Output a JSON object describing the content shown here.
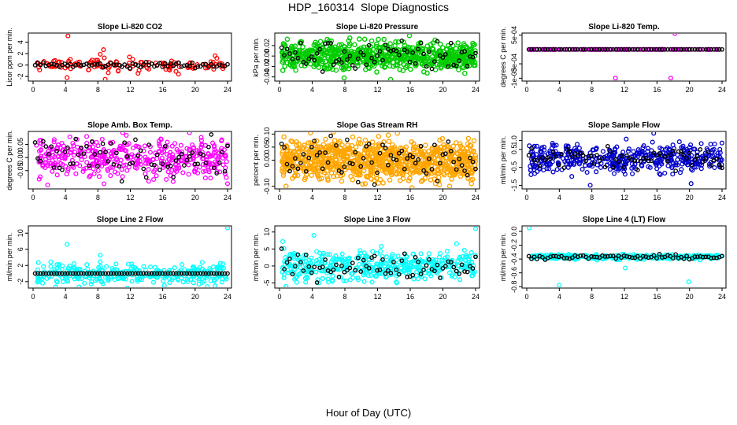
{
  "page": {
    "title": "HDP_160314  Slope Diagnostics",
    "xlabel": "Hour of Day (UTC)"
  },
  "chart_data": [
    {
      "type": "scatter",
      "title": "Slope Li-820 CO2",
      "ylabel": "Licor ppm per min.",
      "color": "#ff0000",
      "xlim": [
        0,
        24
      ],
      "xticks": [
        "0",
        "4",
        "8",
        "12",
        "16",
        "20",
        "24"
      ],
      "ylim": [
        -2.8,
        5.6
      ],
      "yticks": [
        "-2",
        "0",
        "2",
        "4"
      ],
      "style": "narrow",
      "spread": 0.35,
      "count": 130,
      "black_spread": 0.25,
      "outliers": [
        [
          4.3,
          5.1
        ],
        [
          8.7,
          2.7
        ],
        [
          8.3,
          1.9
        ],
        [
          4.2,
          -2.2
        ],
        [
          8.9,
          -2.5
        ],
        [
          4.6,
          1.0
        ],
        [
          12.3,
          1.0
        ]
      ]
    },
    {
      "type": "scatter",
      "title": "Slope Li-820 Pressure",
      "ylabel": "kPa per min.",
      "color": "#00cc00",
      "xlim": [
        0,
        24
      ],
      "xticks": [
        "0",
        "4",
        "8",
        "12",
        "16",
        "20",
        "24"
      ],
      "ylim": [
        -0.048,
        0.044
      ],
      "yticks": [
        "-0.04",
        "-0.02",
        "0.00",
        "0.02"
      ],
      "style": "dense",
      "spread": 0.013,
      "count": 700,
      "black_spread": 0.015,
      "outliers": [
        [
          15.9,
          0.039
        ],
        [
          12.1,
          0.032
        ],
        [
          13.6,
          -0.045
        ],
        [
          7.9,
          -0.042
        ]
      ]
    },
    {
      "type": "scatter",
      "title": "Slope Li-820 Temp.",
      "ylabel": "degrees C per min.",
      "color": "#ff00ff",
      "xlim": [
        0,
        24
      ],
      "xticks": [
        "0",
        "4",
        "8",
        "12",
        "16",
        "20",
        "24"
      ],
      "ylim": [
        -0.0011,
        0.00057
      ],
      "yticks": [
        "-1e-03",
        "-5e-04",
        "5e-04"
      ],
      "style": "flat",
      "spread": 0,
      "count": 110,
      "black_spread": 0,
      "outliers": [
        [
          18.2,
          0.00055
        ],
        [
          10.9,
          -0.001
        ],
        [
          17.7,
          -0.001
        ],
        [
          0.5,
          0
        ]
      ]
    },
    {
      "type": "scatter",
      "title": "Slope Amb. Box Temp.",
      "ylabel": "degrees C per min.",
      "color": "#ff00ff",
      "xlim": [
        0,
        24
      ],
      "xticks": [
        "0",
        "4",
        "8",
        "12",
        "16",
        "20",
        "24"
      ],
      "ylim": [
        -0.12,
        0.1
      ],
      "yticks": [
        "-0.05",
        "0.00",
        "0.05"
      ],
      "style": "medium",
      "spread": 0.035,
      "count": 420,
      "black_spread": 0.035,
      "outliers": [
        [
          19.3,
          0.095
        ],
        [
          24,
          -0.1
        ],
        [
          1.8,
          -0.105
        ],
        [
          11.5,
          0.085
        ]
      ]
    },
    {
      "type": "scatter",
      "title": "Slope Gas Stream RH",
      "ylabel": "percent per min.",
      "color": "#ffa500",
      "xlim": [
        0,
        24
      ],
      "xticks": [
        "0",
        "4",
        "8",
        "12",
        "16",
        "20",
        "24"
      ],
      "ylim": [
        -0.11,
        0.11
      ],
      "yticks": [
        "-0.10",
        "0.00",
        "0.05",
        "0.10"
      ],
      "style": "dense",
      "spread": 0.038,
      "count": 850,
      "black_spread": 0.04,
      "outliers": [
        [
          3.8,
          0.105
        ],
        [
          0.8,
          -0.1
        ],
        [
          10.5,
          -0.09
        ],
        [
          23.5,
          -0.09
        ]
      ]
    },
    {
      "type": "scatter",
      "title": "Slope Sample Flow",
      "ylabel": "ml/min per min.",
      "color": "#0000cc",
      "xlim": [
        0,
        24
      ],
      "xticks": [
        "0",
        "4",
        "8",
        "12",
        "16",
        "20",
        "24"
      ],
      "ylim": [
        -1.7,
        1.5
      ],
      "yticks": [
        "-1.5",
        "-0.5",
        "0.5",
        "1.0"
      ],
      "style": "medium",
      "spread": 0.4,
      "count": 450,
      "black_spread": 0.3,
      "outliers": [
        [
          7.8,
          -1.5
        ],
        [
          15.6,
          1.4
        ],
        [
          20.2,
          -1.4
        ],
        [
          23.1,
          0.8
        ]
      ]
    },
    {
      "type": "scatter",
      "title": "Slope Line 2 Flow",
      "ylabel": "ml/min per min.",
      "color": "#00ffff",
      "xlim": [
        0,
        24
      ],
      "xticks": [
        "0",
        "4",
        "8",
        "12",
        "16",
        "20",
        "24"
      ],
      "ylim": [
        -3.6,
        11.8
      ],
      "yticks": [
        "-2",
        "2",
        "6",
        "10"
      ],
      "style": "medium",
      "spread": 1.3,
      "count": 320,
      "black_spread": 0,
      "black_y": 0,
      "outliers": [
        [
          24,
          11.3
        ],
        [
          4.2,
          7.2
        ],
        [
          16.2,
          -3
        ],
        [
          8.3,
          4.5
        ]
      ]
    },
    {
      "type": "scatter",
      "title": "Slope Line 3 Flow",
      "ylabel": "ml/min per min.",
      "color": "#00ffff",
      "xlim": [
        0,
        24
      ],
      "xticks": [
        "0",
        "4",
        "8",
        "12",
        "16",
        "20",
        "24"
      ],
      "ylim": [
        -6.5,
        11.8
      ],
      "yticks": [
        "-5",
        "0",
        "5",
        "10"
      ],
      "style": "medium",
      "spread": 2.2,
      "count": 420,
      "black_spread": 1.8,
      "outliers": [
        [
          24,
          11
        ],
        [
          4.2,
          9
        ],
        [
          0.4,
          7.2
        ],
        [
          0.8,
          -6
        ],
        [
          2.1,
          -4.8
        ]
      ]
    },
    {
      "type": "scatter",
      "title": "Slope Line 4 (LT) Flow",
      "ylabel": "ml/min per min.",
      "color": "#00ffff",
      "xlim": [
        0,
        24
      ],
      "xticks": [
        "0",
        "4",
        "8",
        "12",
        "16",
        "20",
        "24"
      ],
      "ylim": [
        -0.82,
        0.08
      ],
      "yticks": [
        "-0.8",
        "-0.6",
        "-0.4",
        "-0.2",
        "0.0"
      ],
      "style": "medium",
      "spread": 0.018,
      "count": 330,
      "black_spread": 0.015,
      "outliers": [
        [
          4.0,
          -0.78
        ],
        [
          12.1,
          -0.53
        ],
        [
          19.9,
          -0.73
        ],
        [
          0.3,
          0.05
        ]
      ]
    }
  ]
}
